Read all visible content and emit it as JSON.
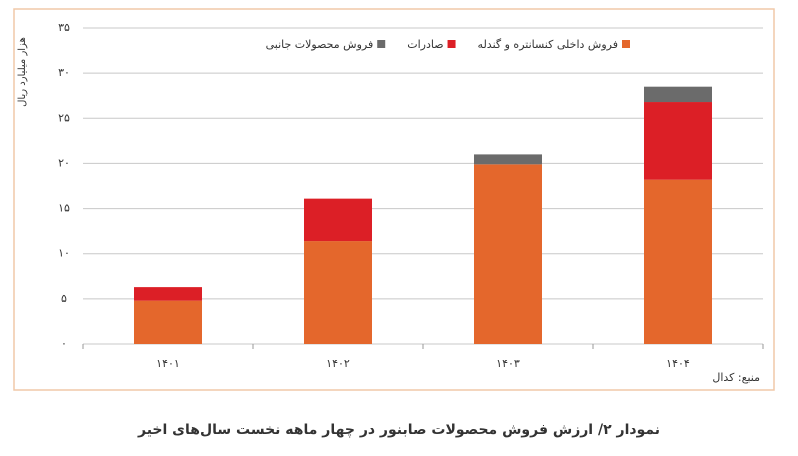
{
  "chart_data": {
    "type": "stacked_bar",
    "caption": "نمودار ۲/ ارزش فروش محصولات صابنور در چهار ماهه نخست سال‌های اخیر",
    "ylabel": "هزار میلیارد ریال",
    "source": "منبع: کدال",
    "categories": [
      "۱۴۰۱",
      "۱۴۰۲",
      "۱۴۰۳",
      "۱۴۰۴"
    ],
    "series": [
      {
        "name": "فروش داخلی کنسانتره و گندله",
        "color": "#e4672c",
        "values": [
          4.8,
          11.4,
          19.9,
          18.2
        ]
      },
      {
        "name": "صادرات",
        "color": "#dc1f26",
        "values": [
          1.5,
          4.7,
          0,
          8.6
        ]
      },
      {
        "name": "فروش محصولات جانبی",
        "color": "#6b6b6b",
        "values": [
          0,
          0,
          1.1,
          1.7
        ]
      }
    ],
    "ylim": [
      0,
      35
    ],
    "yticks": [
      {
        "value": 0,
        "label": "۰"
      },
      {
        "value": 5,
        "label": "۵"
      },
      {
        "value": 10,
        "label": "۱۰"
      },
      {
        "value": 15,
        "label": "۱۵"
      },
      {
        "value": 20,
        "label": "۲۰"
      },
      {
        "value": 25,
        "label": "۲۵"
      },
      {
        "value": 30,
        "label": "۳۰"
      },
      {
        "value": 35,
        "label": "۳۵"
      }
    ],
    "grid": true
  }
}
